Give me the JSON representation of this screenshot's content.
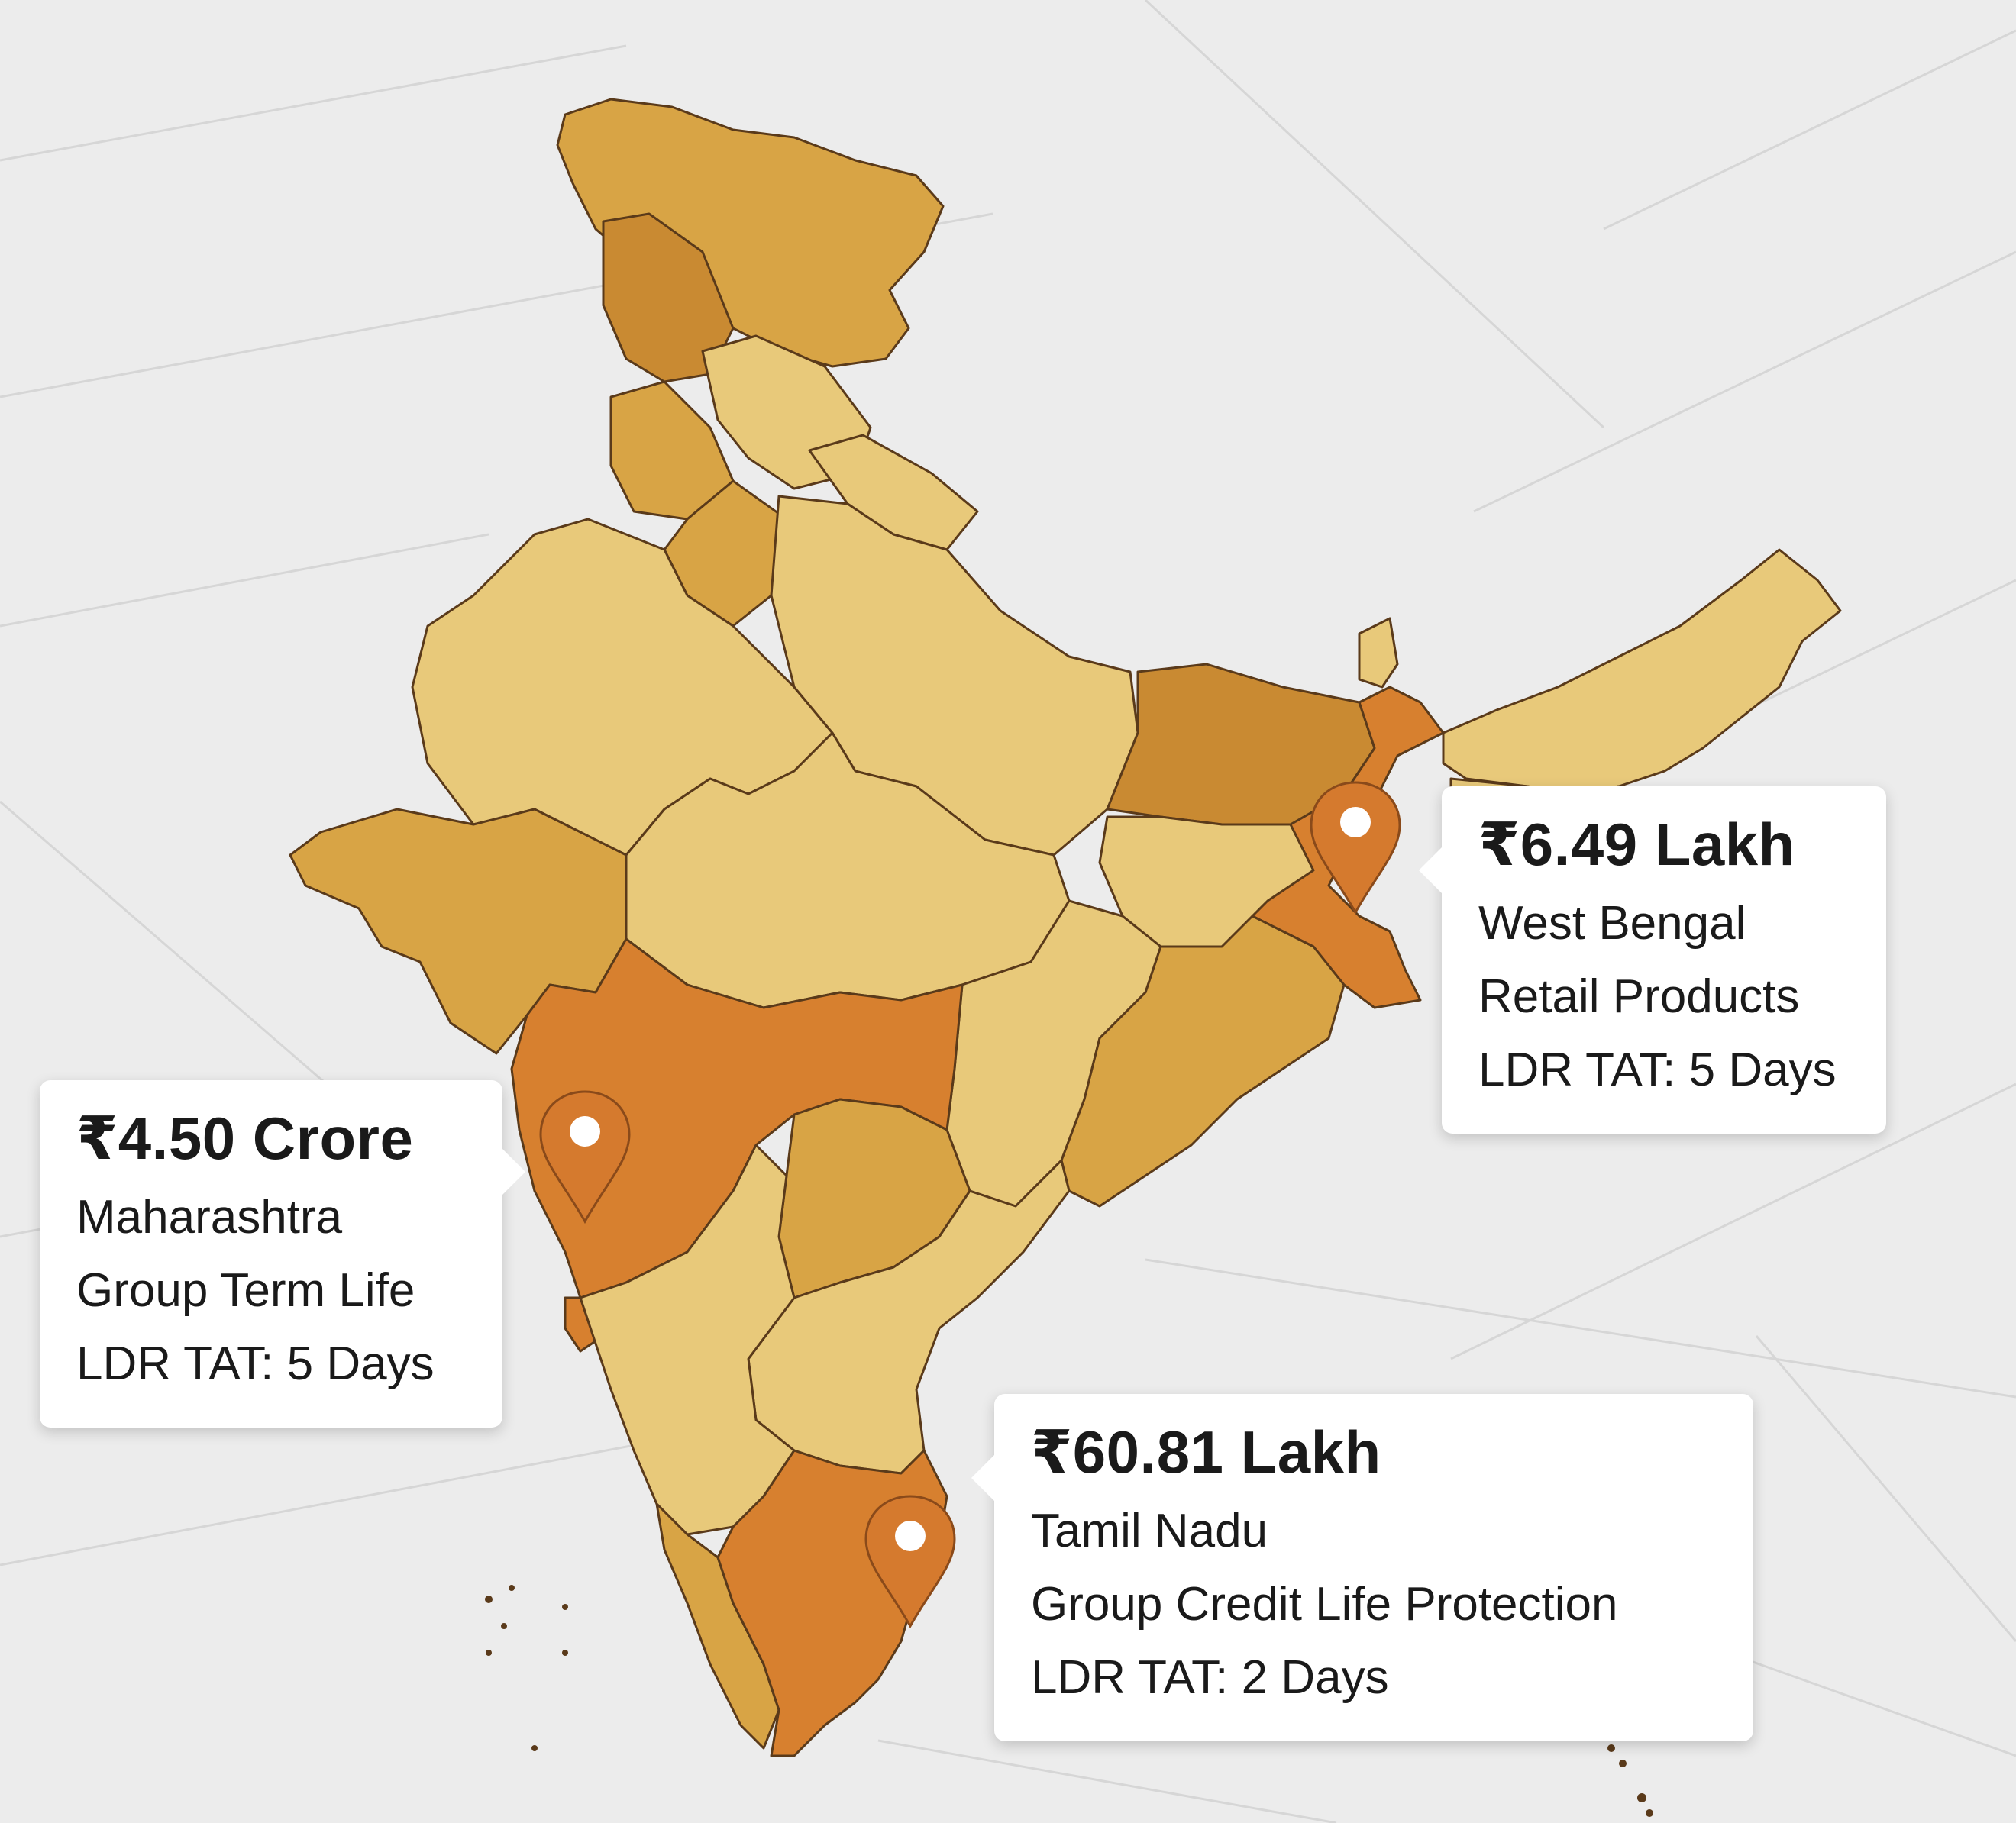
{
  "colors": {
    "background": "#ececec",
    "grid_line": "#d6d6d6",
    "state_light": "#e8c97a",
    "state_mid": "#d8a445",
    "state_dark": "#c98a32",
    "highlight": "#d7802f",
    "pin": "#d57a2e",
    "pin_stroke": "#8a4a1a",
    "border": "#5a3a1a"
  },
  "map": {
    "region": "India",
    "markers": [
      {
        "state": "Maharashtra",
        "icon": "map-pin-icon"
      },
      {
        "state": "West Bengal",
        "icon": "map-pin-icon"
      },
      {
        "state": "Tamil Nadu",
        "icon": "map-pin-icon"
      }
    ]
  },
  "callouts": {
    "west_bengal": {
      "amount": "₹6.49 Lakh",
      "state": "West Bengal",
      "product": "Retail Products",
      "tat": "LDR TAT: 5 Days"
    },
    "maharashtra": {
      "amount": "₹4.50 Crore",
      "state": "Maharashtra",
      "product": "Group Term Life",
      "tat": "LDR TAT: 5 Days"
    },
    "tamil_nadu": {
      "amount": "₹60.81 Lakh",
      "state": "Tamil Nadu",
      "product": "Group Credit Life Protection",
      "tat": "LDR TAT: 2 Days"
    }
  }
}
